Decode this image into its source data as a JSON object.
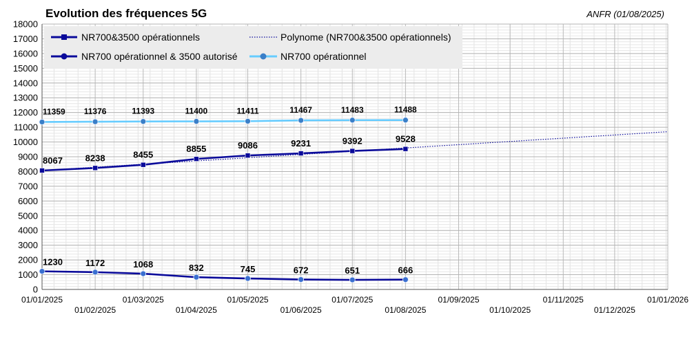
{
  "chart_data": {
    "type": "line",
    "title": "Evolution des fréquences 5G",
    "source": "ANFR (01/08/2025)",
    "ylim": [
      0,
      18000
    ],
    "y_ticks": [
      0,
      1000,
      2000,
      3000,
      4000,
      5000,
      6000,
      7000,
      8000,
      9000,
      10000,
      11000,
      12000,
      13000,
      14000,
      15000,
      16000,
      17000,
      18000
    ],
    "x_ticks": [
      "01/01/2025",
      "01/02/2025",
      "01/03/2025",
      "01/04/2025",
      "01/05/2025",
      "01/06/2025",
      "01/07/2025",
      "01/08/2025",
      "01/09/2025",
      "01/10/2025",
      "01/11/2025",
      "01/12/2025",
      "01/01/2026"
    ],
    "grid": true,
    "legend_position": "top-left",
    "series": [
      {
        "name": "NR700&3500 opérationnels",
        "color": "#0a0a9a",
        "marker": "square",
        "x": [
          "01/01/2025",
          "01/02/2025",
          "01/03/2025",
          "01/04/2025",
          "01/05/2025",
          "01/06/2025",
          "01/07/2025",
          "01/08/2025"
        ],
        "values": [
          8067,
          8238,
          8455,
          8855,
          9086,
          9231,
          9392,
          9528
        ]
      },
      {
        "name": "Polynome (NR700&3500 opérationnels)",
        "color": "#0a0a9a",
        "style": "dotted",
        "x": [
          "01/01/2025",
          "01/01/2026"
        ],
        "values": [
          8067,
          10700
        ]
      },
      {
        "name": "NR700 opérationnel & 3500 autorisé",
        "color": "#0a0a9a",
        "marker": "circle",
        "x": [
          "01/01/2025",
          "01/02/2025",
          "01/03/2025",
          "01/04/2025",
          "01/05/2025",
          "01/06/2025",
          "01/07/2025",
          "01/08/2025"
        ],
        "values": [
          1230,
          1172,
          1068,
          832,
          745,
          672,
          651,
          666
        ]
      },
      {
        "name": "NR700 opérationnel",
        "color": "#66ccff",
        "marker": "circle",
        "x": [
          "01/01/2025",
          "01/02/2025",
          "01/03/2025",
          "01/04/2025",
          "01/05/2025",
          "01/06/2025",
          "01/07/2025",
          "01/08/2025"
        ],
        "values": [
          11359,
          11376,
          11393,
          11400,
          11411,
          11467,
          11483,
          11488
        ]
      }
    ]
  }
}
